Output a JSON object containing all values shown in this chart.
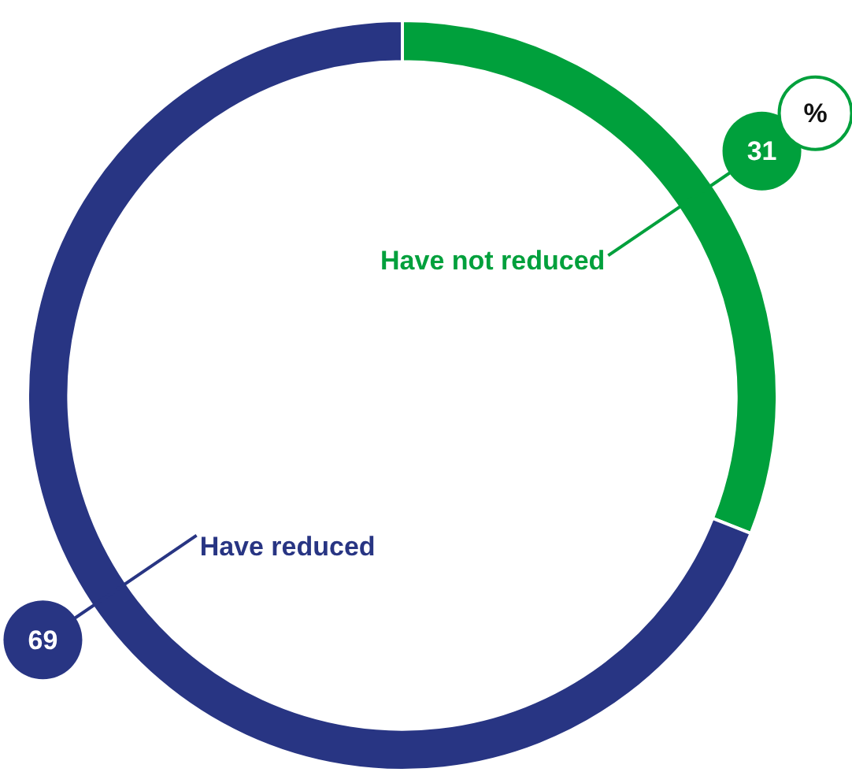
{
  "chart_data": {
    "type": "donut",
    "categories": [
      "Have not reduced",
      "Have reduced"
    ],
    "values": [
      31,
      69
    ],
    "colors": [
      "#00a03c",
      "#283583"
    ],
    "data_labels": true,
    "annotations": [
      "%"
    ],
    "legend": false
  }
}
